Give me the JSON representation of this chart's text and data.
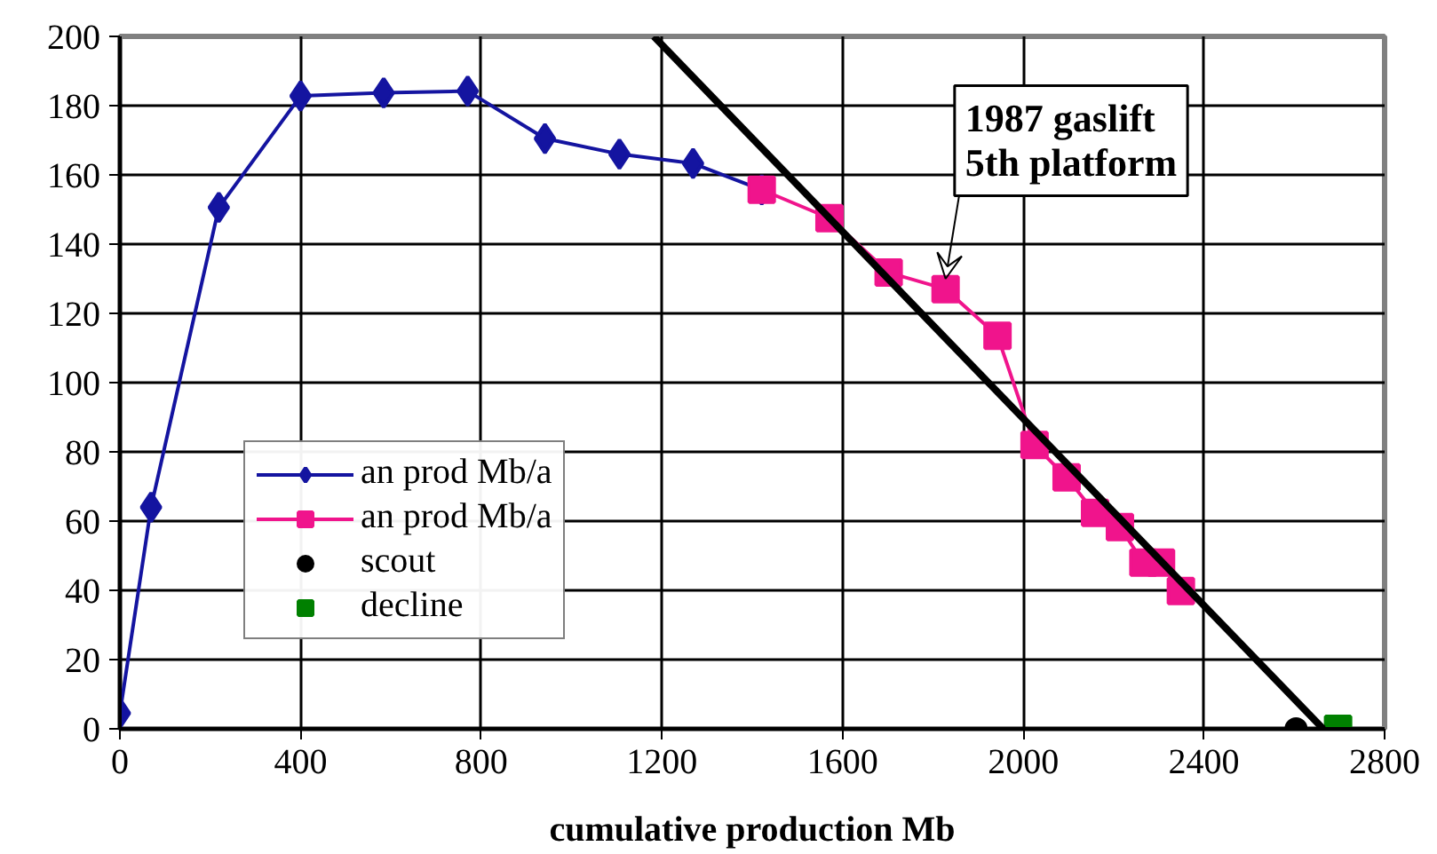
{
  "chart_data": {
    "type": "line",
    "xlabel": "cumulative production Mb",
    "xlim": [
      0,
      2800
    ],
    "xticks": [
      0,
      400,
      800,
      1200,
      1600,
      2000,
      2400,
      2800
    ],
    "ylim": [
      0,
      200
    ],
    "yticks": [
      0,
      20,
      40,
      60,
      80,
      100,
      120,
      140,
      160,
      180,
      200
    ],
    "grid": true,
    "legend": "left",
    "series": [
      {
        "name": "an prod Mb/a",
        "color": "#1414a0",
        "marker": "diamond",
        "x": [
          0,
          69,
          219,
          400,
          584,
          770,
          941,
          1106,
          1269,
          1421
        ],
        "values": [
          4.5,
          64,
          150.6,
          182.8,
          183.7,
          184.2,
          170.5,
          166,
          163.3,
          155.7
        ]
      },
      {
        "name": "an prod Mb/a",
        "color": "#f0148c",
        "marker": "square",
        "x": [
          1421,
          1571,
          1702,
          1828,
          1943,
          2025,
          2096,
          2159,
          2214,
          2266,
          2305,
          2349
        ],
        "values": [
          155.7,
          147.5,
          131.8,
          127,
          113.5,
          82,
          72.6,
          62.4,
          58.3,
          48,
          48,
          39.8
        ]
      },
      {
        "name": "scout",
        "type": "scatter",
        "color": "#000000",
        "marker": "circle",
        "x": [
          2604
        ],
        "values": [
          0
        ]
      },
      {
        "name": "decline",
        "type": "scatter",
        "color": "#008000",
        "marker": "square",
        "x": [
          2697
        ],
        "values": [
          0
        ]
      },
      {
        "color": "#000000",
        "marker": "none",
        "x": [
          1182,
          2664
        ],
        "values": [
          200,
          0
        ]
      }
    ],
    "annotations": [
      {
        "text": "1987 gaslift\n5th platform",
        "x": 1828,
        "y": 127
      }
    ]
  }
}
